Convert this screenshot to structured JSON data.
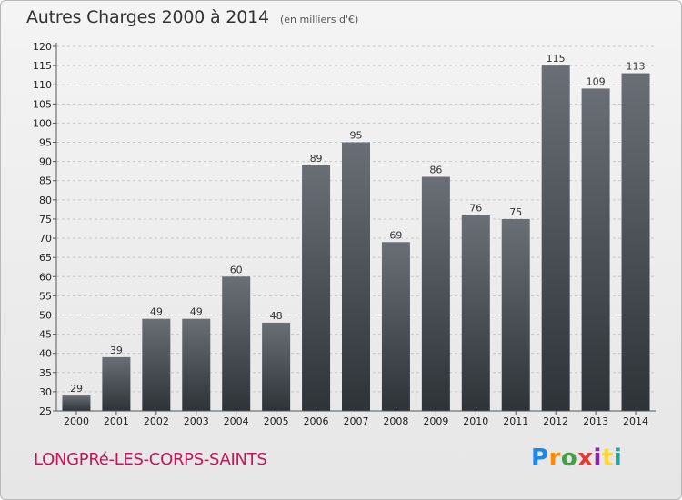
{
  "header": {
    "title": "Autres Charges 2000 à 2014",
    "unit": "(en milliers d'€)"
  },
  "footer": {
    "town": "LONGPRé-LES-CORPS-SAINTS",
    "brand": "Proxiti"
  },
  "colors": {
    "bar_top": "#6a6f76",
    "bar_bottom": "#2e3338",
    "title": "#333333",
    "town": "#c2185b"
  },
  "chart_data": {
    "type": "bar",
    "title": "Autres Charges 2000 à 2014",
    "subtitle": "(en milliers d'€)",
    "categories": [
      "2000",
      "2001",
      "2002",
      "2003",
      "2004",
      "2005",
      "2006",
      "2007",
      "2008",
      "2009",
      "2010",
      "2011",
      "2012",
      "2013",
      "2014"
    ],
    "values": [
      29,
      39,
      49,
      49,
      60,
      48,
      89,
      95,
      69,
      86,
      76,
      75,
      115,
      109,
      113
    ],
    "ylim": [
      25,
      120
    ],
    "yticks": [
      25,
      30,
      35,
      40,
      45,
      50,
      55,
      60,
      65,
      70,
      75,
      80,
      85,
      90,
      95,
      100,
      105,
      110,
      115,
      120
    ],
    "grid": true,
    "data_labels": true
  }
}
